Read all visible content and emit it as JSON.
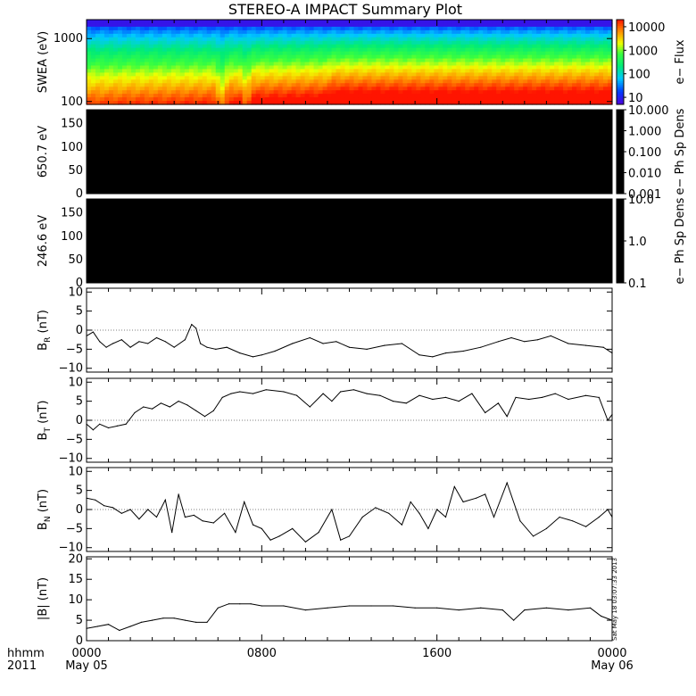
{
  "title": "STEREO-A IMPACT Summary Plot",
  "colors": {
    "background": "#ffffff",
    "axis": "#000000",
    "trace": "#000000",
    "pad_fill": "#000000",
    "spectrogram_low": "#f0ff00",
    "spectrogram_high_flux": "#ff3000"
  },
  "x_axis": {
    "corner_label_top": "hhmm",
    "corner_label_bottom": "2011",
    "ticks": [
      {
        "value": 0,
        "label": "0000",
        "sublabel": "May 05"
      },
      {
        "value": 8,
        "label": "0800",
        "sublabel": ""
      },
      {
        "value": 16,
        "label": "1600",
        "sublabel": ""
      },
      {
        "value": 24,
        "label": "0000",
        "sublabel": "May 06"
      }
    ]
  },
  "timestamp_note": "Sat May 18 03:07:33 2013",
  "chart_data": [
    {
      "id": "swea",
      "type": "heatmap",
      "ylabel": "SWEA (eV)",
      "yscale": "log",
      "ylim": [
        90,
        2000
      ],
      "yticks": [
        {
          "v": 100,
          "label": "100"
        },
        {
          "v": 1000,
          "label": "1000"
        }
      ],
      "colorbar": {
        "label": "e− Flux",
        "scale": "log",
        "range": [
          5,
          20000
        ],
        "ticks": [
          {
            "v": 10000,
            "label": "10000"
          },
          {
            "v": 1000,
            "label": "1000"
          },
          {
            "v": 100,
            "label": "100"
          },
          {
            "v": 10,
            "label": "10"
          }
        ]
      },
      "time_profile": [
        [
          0,
          0.55
        ],
        [
          2,
          0.6
        ],
        [
          4,
          0.62
        ],
        [
          5.8,
          0.65
        ],
        [
          6.2,
          0.35
        ],
        [
          6.5,
          0.7
        ],
        [
          7.0,
          0.7
        ],
        [
          7.3,
          0.45
        ],
        [
          7.6,
          0.8
        ],
        [
          10,
          0.85
        ],
        [
          11,
          0.88
        ],
        [
          11.3,
          1.0
        ],
        [
          14,
          1.0
        ],
        [
          18,
          1.0
        ],
        [
          22,
          1.0
        ],
        [
          24,
          1.0
        ]
      ]
    },
    {
      "id": "pad650",
      "type": "heatmap",
      "ylabel": "650.7 eV",
      "ylim": [
        0,
        180
      ],
      "yticks": [
        {
          "v": 0,
          "label": "0"
        },
        {
          "v": 50,
          "label": "50"
        },
        {
          "v": 100,
          "label": "100"
        },
        {
          "v": 150,
          "label": "150"
        }
      ],
      "colorbar": {
        "label": "e− Ph Sp Dens",
        "scale": "log",
        "range": [
          0.001,
          10
        ],
        "ticks": [
          {
            "v": 10,
            "label": "10.000"
          },
          {
            "v": 1,
            "label": "1.000"
          },
          {
            "v": 0.1,
            "label": "0.100"
          },
          {
            "v": 0.01,
            "label": "0.010"
          },
          {
            "v": 0.001,
            "label": "0.001"
          }
        ]
      }
    },
    {
      "id": "pad246",
      "type": "heatmap",
      "ylabel": "246.6 eV",
      "ylim": [
        0,
        180
      ],
      "yticks": [
        {
          "v": 0,
          "label": "0"
        },
        {
          "v": 50,
          "label": "50"
        },
        {
          "v": 100,
          "label": "100"
        },
        {
          "v": 150,
          "label": "150"
        }
      ],
      "colorbar": {
        "label": "e− Ph Sp Dens",
        "scale": "log",
        "range": [
          0.1,
          10
        ],
        "ticks": [
          {
            "v": 10,
            "label": "10.0"
          },
          {
            "v": 1,
            "label": "1.0"
          },
          {
            "v": 0.1,
            "label": "0.1"
          }
        ]
      }
    },
    {
      "id": "br",
      "type": "line",
      "ylabel": "B",
      "ylabel_sub": "R",
      "ylabel_unit": " (nT)",
      "ylim": [
        -11,
        11
      ],
      "yticks": [
        {
          "v": -10,
          "label": "−10"
        },
        {
          "v": -5,
          "label": "−5"
        },
        {
          "v": 0,
          "label": "0"
        },
        {
          "v": 5,
          "label": "5"
        },
        {
          "v": 10,
          "label": "10"
        }
      ],
      "x": [
        0,
        0.3,
        0.6,
        0.9,
        1.2,
        1.6,
        2.0,
        2.4,
        2.8,
        3.2,
        3.6,
        4.0,
        4.5,
        4.8,
        5.0,
        5.2,
        5.5,
        5.9,
        6.4,
        7.0,
        7.6,
        8.0,
        8.6,
        9.4,
        10.2,
        10.8,
        11.4,
        12.0,
        12.8,
        13.6,
        14.4,
        15.2,
        15.8,
        16.4,
        17.2,
        18.0,
        18.8,
        19.4,
        20.0,
        20.6,
        21.2,
        22.0,
        22.8,
        23.6,
        24.0
      ],
      "y": [
        -1.5,
        -0.5,
        -3,
        -4.5,
        -3.5,
        -2.5,
        -4.5,
        -3,
        -3.5,
        -2,
        -3,
        -4.5,
        -2.5,
        1.5,
        0.5,
        -3.5,
        -4.5,
        -5,
        -4.5,
        -6,
        -7,
        -6.5,
        -5.5,
        -3.5,
        -2,
        -3.5,
        -3,
        -4.5,
        -5,
        -4,
        -3.5,
        -6.5,
        -7,
        -6,
        -5.5,
        -4.5,
        -3,
        -2,
        -3,
        -2.5,
        -1.5,
        -3.5,
        -4,
        -4.5,
        -6
      ]
    },
    {
      "id": "bt",
      "type": "line",
      "ylabel": "B",
      "ylabel_sub": "T",
      "ylabel_unit": " (nT)",
      "ylim": [
        -11,
        11
      ],
      "yticks": [
        {
          "v": -10,
          "label": "−10"
        },
        {
          "v": -5,
          "label": "−5"
        },
        {
          "v": 0,
          "label": "0"
        },
        {
          "v": 5,
          "label": "5"
        },
        {
          "v": 10,
          "label": "10"
        }
      ],
      "x": [
        0,
        0.3,
        0.6,
        1.0,
        1.4,
        1.8,
        2.2,
        2.6,
        3.0,
        3.4,
        3.8,
        4.2,
        4.6,
        5.0,
        5.4,
        5.8,
        6.2,
        6.6,
        7.0,
        7.6,
        8.2,
        9.0,
        9.6,
        10.2,
        10.8,
        11.2,
        11.6,
        12.2,
        12.8,
        13.4,
        14.0,
        14.6,
        15.2,
        15.8,
        16.4,
        17.0,
        17.6,
        18.2,
        18.8,
        19.2,
        19.6,
        20.2,
        20.8,
        21.4,
        22.0,
        22.8,
        23.4,
        23.8,
        24.0
      ],
      "y": [
        -1,
        -2.5,
        -1,
        -2,
        -1.5,
        -1,
        2,
        3.5,
        3,
        4.5,
        3.5,
        5,
        4,
        2.5,
        1,
        2.5,
        6,
        7,
        7.5,
        7,
        8,
        7.5,
        6.5,
        3.5,
        7,
        5,
        7.5,
        8,
        7,
        6.5,
        5,
        4.5,
        6.5,
        5.5,
        6,
        5,
        7,
        2,
        4.5,
        1,
        6,
        5.5,
        6,
        7,
        5.5,
        6.5,
        6,
        0,
        1.5
      ]
    },
    {
      "id": "bn",
      "type": "line",
      "ylabel": "B",
      "ylabel_sub": "N",
      "ylabel_unit": " (nT)",
      "ylim": [
        -11,
        11
      ],
      "yticks": [
        {
          "v": -10,
          "label": "−10"
        },
        {
          "v": -5,
          "label": "−5"
        },
        {
          "v": 0,
          "label": "0"
        },
        {
          "v": 5,
          "label": "5"
        },
        {
          "v": 10,
          "label": "10"
        }
      ],
      "x": [
        0,
        0.4,
        0.8,
        1.2,
        1.6,
        2.0,
        2.4,
        2.8,
        3.2,
        3.6,
        3.9,
        4.2,
        4.5,
        4.9,
        5.3,
        5.8,
        6.3,
        6.8,
        7.2,
        7.6,
        8.0,
        8.4,
        8.8,
        9.4,
        10.0,
        10.6,
        11.2,
        11.6,
        12.0,
        12.6,
        13.2,
        13.8,
        14.4,
        14.8,
        15.2,
        15.6,
        16.0,
        16.4,
        16.8,
        17.2,
        17.8,
        18.2,
        18.6,
        19.2,
        19.8,
        20.4,
        21.0,
        21.6,
        22.2,
        22.8,
        23.4,
        23.8,
        24.0
      ],
      "y": [
        3,
        2.5,
        1,
        0.5,
        -1,
        0,
        -2.5,
        0,
        -2,
        2.5,
        -6,
        4,
        -2,
        -1.5,
        -3,
        -3.5,
        -1,
        -6,
        2,
        -4,
        -5,
        -8,
        -7,
        -5,
        -8.5,
        -6,
        0,
        -8,
        -7,
        -2,
        0.5,
        -1,
        -4,
        2,
        -1,
        -5,
        0,
        -2,
        6,
        2,
        3,
        4,
        -2,
        7,
        -3,
        -7,
        -5,
        -2,
        -3,
        -4.5,
        -2,
        0,
        -2
      ]
    },
    {
      "id": "btot",
      "type": "line",
      "ylabel": "|B| (nT)",
      "ylim": [
        0,
        20.5
      ],
      "yticks": [
        {
          "v": 0,
          "label": "0"
        },
        {
          "v": 5,
          "label": "5"
        },
        {
          "v": 10,
          "label": "10"
        },
        {
          "v": 15,
          "label": "15"
        },
        {
          "v": 20,
          "label": "20"
        }
      ],
      "x": [
        0,
        0.5,
        1.0,
        1.5,
        2.0,
        2.5,
        3.0,
        3.5,
        4.0,
        4.5,
        5.0,
        5.5,
        6.0,
        6.5,
        7.0,
        7.5,
        8.0,
        9.0,
        10.0,
        11.0,
        12.0,
        13.0,
        14.0,
        15.0,
        16.0,
        17.0,
        18.0,
        19.0,
        19.5,
        20.0,
        21.0,
        22.0,
        23.0,
        23.5,
        24.0
      ],
      "y": [
        3,
        3.5,
        4,
        2.5,
        3.5,
        4.5,
        5,
        5.5,
        5.5,
        5,
        4.5,
        4.5,
        8,
        9,
        9,
        9,
        8.5,
        8.5,
        7.5,
        8,
        8.5,
        8.5,
        8.5,
        8,
        8,
        7.5,
        8,
        7.5,
        5,
        7.5,
        8,
        7.5,
        8,
        6,
        5
      ]
    }
  ]
}
